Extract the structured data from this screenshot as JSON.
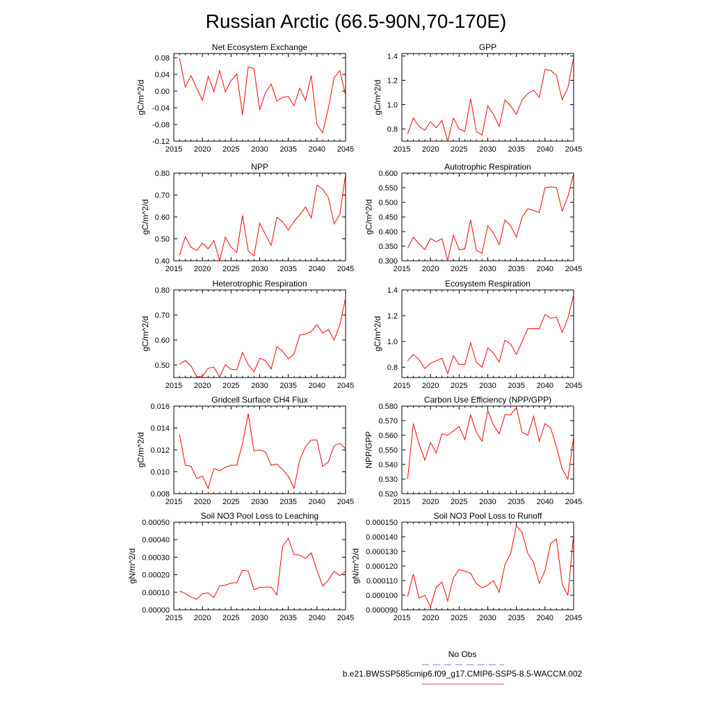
{
  "title": "Russian Arctic (66.5-90N,70-170E)",
  "legend": {
    "entries": [
      {
        "label": "No Obs",
        "color": "#7b7bd6",
        "style": "dashed"
      },
      {
        "label": "b.e21.BWSSP585cmip6.f09_g17.CMIP6-SSP5-8.5-WACCM.002",
        "color": "#e05050",
        "style": "solid"
      }
    ]
  },
  "chart_data": [
    {
      "type": "line",
      "title": "Net Ecosystem Exchange",
      "ylabel": "gC/m^2/d",
      "xlim": [
        2015,
        2045
      ],
      "ylim": [
        -0.12,
        0.09
      ],
      "xticks": [
        2015,
        2020,
        2025,
        2030,
        2035,
        2040,
        2045
      ],
      "xtick_labels": [
        "2015",
        "2020",
        "2025",
        "2030",
        "2035",
        "2040",
        "2045"
      ],
      "yticks": [
        -0.12,
        -0.08,
        -0.04,
        0.0,
        0.04,
        0.08
      ],
      "ytick_labels": [
        "-0.12",
        "-0.08",
        "-0.04",
        "0.00",
        "0.04",
        "0.08"
      ],
      "color": "#ff0000",
      "x": [
        2016,
        2017,
        2018,
        2019,
        2020,
        2021,
        2022,
        2023,
        2024,
        2025,
        2026,
        2027,
        2028,
        2029,
        2030,
        2031,
        2032,
        2033,
        2034,
        2035,
        2036,
        2037,
        2038,
        2039,
        2040,
        2041,
        2042,
        2043,
        2044,
        2045
      ],
      "y": [
        0.079,
        0.01,
        0.037,
        0.007,
        -0.022,
        0.035,
        -0.001,
        0.049,
        -0.002,
        0.025,
        0.041,
        -0.057,
        0.058,
        0.054,
        -0.045,
        -0.004,
        0.017,
        -0.024,
        -0.015,
        -0.013,
        -0.035,
        0.007,
        -0.022,
        0.037,
        -0.08,
        -0.1,
        -0.04,
        0.032,
        0.049,
        -0.01
      ]
    },
    {
      "type": "line",
      "title": "GPP",
      "ylabel": "gC/m^2/d",
      "xlim": [
        2015,
        2045
      ],
      "ylim": [
        0.7,
        1.42
      ],
      "xticks": [
        2015,
        2020,
        2025,
        2030,
        2035,
        2040,
        2045
      ],
      "xtick_labels": [
        "2015",
        "2020",
        "2025",
        "2030",
        "2035",
        "2040",
        "2045"
      ],
      "yticks": [
        0.8,
        1.0,
        1.2,
        1.4
      ],
      "ytick_labels": [
        "0.8",
        "1.0",
        "1.2",
        "1.4"
      ],
      "color": "#ff0000",
      "x": [
        2016,
        2017,
        2018,
        2019,
        2020,
        2021,
        2022,
        2023,
        2024,
        2025,
        2026,
        2027,
        2028,
        2029,
        2030,
        2031,
        2032,
        2033,
        2034,
        2035,
        2036,
        2037,
        2038,
        2039,
        2040,
        2041,
        2042,
        2043,
        2044,
        2045
      ],
      "y": [
        0.76,
        0.89,
        0.82,
        0.79,
        0.86,
        0.81,
        0.87,
        0.7,
        0.89,
        0.8,
        0.78,
        1.05,
        0.78,
        0.75,
        0.99,
        0.92,
        0.82,
        1.04,
        0.99,
        0.92,
        1.04,
        1.09,
        1.12,
        1.06,
        1.29,
        1.28,
        1.24,
        1.04,
        1.14,
        1.39
      ]
    },
    {
      "type": "line",
      "title": "NPP",
      "ylabel": "gC/m^2/d",
      "xlim": [
        2015,
        2045
      ],
      "ylim": [
        0.4,
        0.8
      ],
      "xticks": [
        2015,
        2020,
        2025,
        2030,
        2035,
        2040,
        2045
      ],
      "xtick_labels": [
        "2015",
        "2020",
        "2025",
        "2030",
        "2035",
        "2040",
        "2045"
      ],
      "yticks": [
        0.4,
        0.5,
        0.6,
        0.7,
        0.8
      ],
      "ytick_labels": [
        "0.40",
        "0.50",
        "0.60",
        "0.70",
        "0.80"
      ],
      "color": "#ff0000",
      "x": [
        2016,
        2017,
        2018,
        2019,
        2020,
        2021,
        2022,
        2023,
        2024,
        2025,
        2026,
        2027,
        2028,
        2029,
        2030,
        2031,
        2032,
        2033,
        2034,
        2035,
        2036,
        2037,
        2038,
        2039,
        2040,
        2041,
        2042,
        2043,
        2044,
        2045
      ],
      "y": [
        0.425,
        0.51,
        0.462,
        0.446,
        0.48,
        0.455,
        0.492,
        0.4,
        0.508,
        0.462,
        0.438,
        0.607,
        0.445,
        0.422,
        0.572,
        0.52,
        0.47,
        0.598,
        0.578,
        0.54,
        0.58,
        0.61,
        0.645,
        0.595,
        0.745,
        0.728,
        0.688,
        0.568,
        0.612,
        0.795
      ]
    },
    {
      "type": "line",
      "title": "Autotrophic Respiration",
      "ylabel": "gC/m^2/d",
      "xlim": [
        2015,
        2045
      ],
      "ylim": [
        0.3,
        0.6
      ],
      "xticks": [
        2015,
        2020,
        2025,
        2030,
        2035,
        2040,
        2045
      ],
      "xtick_labels": [
        "2015",
        "2020",
        "2025",
        "2030",
        "2035",
        "2040",
        "2045"
      ],
      "yticks": [
        0.3,
        0.35,
        0.4,
        0.45,
        0.5,
        0.55,
        0.6
      ],
      "ytick_labels": [
        "0.300",
        "0.350",
        "0.400",
        "0.450",
        "0.500",
        "0.550",
        "0.600"
      ],
      "color": "#ff0000",
      "x": [
        2016,
        2017,
        2018,
        2019,
        2020,
        2021,
        2022,
        2023,
        2024,
        2025,
        2026,
        2027,
        2028,
        2029,
        2030,
        2031,
        2032,
        2033,
        2034,
        2035,
        2036,
        2037,
        2038,
        2039,
        2040,
        2041,
        2042,
        2043,
        2044,
        2045
      ],
      "y": [
        0.343,
        0.38,
        0.358,
        0.338,
        0.376,
        0.365,
        0.376,
        0.3,
        0.388,
        0.338,
        0.341,
        0.44,
        0.336,
        0.325,
        0.42,
        0.395,
        0.355,
        0.44,
        0.42,
        0.38,
        0.449,
        0.478,
        0.472,
        0.465,
        0.55,
        0.553,
        0.551,
        0.47,
        0.52,
        0.598
      ]
    },
    {
      "type": "line",
      "title": "Heterotrophic Respiration",
      "ylabel": "gC/m^2/d",
      "xlim": [
        2015,
        2045
      ],
      "ylim": [
        0.45,
        0.8
      ],
      "xticks": [
        2015,
        2020,
        2025,
        2030,
        2035,
        2040,
        2045
      ],
      "xtick_labels": [
        "2015",
        "2020",
        "2025",
        "2030",
        "2035",
        "2040",
        "2045"
      ],
      "yticks": [
        0.5,
        0.6,
        0.7,
        0.8
      ],
      "ytick_labels": [
        "0.50",
        "0.60",
        "0.70",
        "0.80"
      ],
      "color": "#ff0000",
      "x": [
        2016,
        2017,
        2018,
        2019,
        2020,
        2021,
        2022,
        2023,
        2024,
        2025,
        2026,
        2027,
        2028,
        2029,
        2030,
        2031,
        2032,
        2033,
        2034,
        2035,
        2036,
        2037,
        2038,
        2039,
        2040,
        2041,
        2042,
        2043,
        2044,
        2045
      ],
      "y": [
        0.503,
        0.518,
        0.497,
        0.453,
        0.455,
        0.487,
        0.492,
        0.452,
        0.502,
        0.483,
        0.481,
        0.55,
        0.502,
        0.473,
        0.527,
        0.518,
        0.484,
        0.573,
        0.556,
        0.524,
        0.545,
        0.62,
        0.624,
        0.633,
        0.662,
        0.628,
        0.642,
        0.6,
        0.66,
        0.768
      ]
    },
    {
      "type": "line",
      "title": "Ecosystem Respiration",
      "ylabel": "gC/m^2/d",
      "xlim": [
        2015,
        2045
      ],
      "ylim": [
        0.72,
        1.4
      ],
      "xticks": [
        2015,
        2020,
        2025,
        2030,
        2035,
        2040,
        2045
      ],
      "xtick_labels": [
        "2015",
        "2020",
        "2025",
        "2030",
        "2035",
        "2040",
        "2045"
      ],
      "yticks": [
        0.8,
        1.0,
        1.2,
        1.4
      ],
      "ytick_labels": [
        "0.8",
        "1.0",
        "1.2",
        "1.4"
      ],
      "color": "#ff0000",
      "x": [
        2016,
        2017,
        2018,
        2019,
        2020,
        2021,
        2022,
        2023,
        2024,
        2025,
        2026,
        2027,
        2028,
        2029,
        2030,
        2031,
        2032,
        2033,
        2034,
        2035,
        2036,
        2037,
        2038,
        2039,
        2040,
        2041,
        2042,
        2043,
        2044,
        2045
      ],
      "y": [
        0.85,
        0.9,
        0.86,
        0.79,
        0.83,
        0.85,
        0.87,
        0.75,
        0.89,
        0.82,
        0.82,
        0.99,
        0.84,
        0.8,
        0.95,
        0.91,
        0.84,
        1.01,
        0.98,
        0.9,
        1.0,
        1.1,
        1.1,
        1.1,
        1.21,
        1.18,
        1.19,
        1.07,
        1.18,
        1.36
      ]
    },
    {
      "type": "line",
      "title": "Gridcell Surface CH4 Flux",
      "ylabel": "gC/m^2/d",
      "xlim": [
        2015,
        2045
      ],
      "ylim": [
        0.008,
        0.016
      ],
      "xticks": [
        2015,
        2020,
        2025,
        2030,
        2035,
        2040,
        2045
      ],
      "xtick_labels": [
        "2015",
        "2020",
        "2025",
        "2030",
        "2035",
        "2040",
        "2045"
      ],
      "yticks": [
        0.008,
        0.01,
        0.012,
        0.014,
        0.016
      ],
      "ytick_labels": [
        "0.008",
        "0.010",
        "0.012",
        "0.014",
        "0.016"
      ],
      "color": "#ff0000",
      "x": [
        2016,
        2017,
        2018,
        2019,
        2020,
        2021,
        2022,
        2023,
        2024,
        2025,
        2026,
        2027,
        2028,
        2029,
        2030,
        2031,
        2032,
        2033,
        2034,
        2035,
        2036,
        2037,
        2038,
        2039,
        2040,
        2041,
        2042,
        2043,
        2044,
        2045
      ],
      "y": [
        0.0134,
        0.0106,
        0.0105,
        0.0094,
        0.0096,
        0.0085,
        0.0103,
        0.0101,
        0.0104,
        0.0106,
        0.0106,
        0.0126,
        0.0153,
        0.0119,
        0.012,
        0.0118,
        0.0106,
        0.0107,
        0.0102,
        0.0096,
        0.0085,
        0.0111,
        0.0123,
        0.0129,
        0.0129,
        0.0105,
        0.0109,
        0.0124,
        0.0126,
        0.0121
      ]
    },
    {
      "type": "line",
      "title": "Carbon Use Efficiency (NPP/GPP)",
      "ylabel": "NPP/GPP",
      "xlim": [
        2015,
        2045
      ],
      "ylim": [
        0.52,
        0.58
      ],
      "xticks": [
        2015,
        2020,
        2025,
        2030,
        2035,
        2040,
        2045
      ],
      "xtick_labels": [
        "2015",
        "2020",
        "2025",
        "2030",
        "2035",
        "2040",
        "2045"
      ],
      "yticks": [
        0.52,
        0.53,
        0.54,
        0.55,
        0.56,
        0.57,
        0.58
      ],
      "ytick_labels": [
        "0.520",
        "0.530",
        "0.540",
        "0.550",
        "0.560",
        "0.570",
        "0.580"
      ],
      "color": "#ff0000",
      "x": [
        2016,
        2017,
        2018,
        2019,
        2020,
        2021,
        2022,
        2023,
        2024,
        2025,
        2026,
        2027,
        2028,
        2029,
        2030,
        2031,
        2032,
        2033,
        2034,
        2035,
        2036,
        2037,
        2038,
        2039,
        2040,
        2041,
        2042,
        2043,
        2044,
        2045
      ],
      "y": [
        0.53,
        0.568,
        0.554,
        0.543,
        0.555,
        0.548,
        0.561,
        0.56,
        0.563,
        0.566,
        0.557,
        0.574,
        0.562,
        0.556,
        0.577,
        0.567,
        0.561,
        0.574,
        0.574,
        0.579,
        0.562,
        0.56,
        0.573,
        0.556,
        0.568,
        0.565,
        0.552,
        0.537,
        0.53,
        0.559
      ]
    },
    {
      "type": "line",
      "title": "Soil NO3 Pool Loss to Leaching",
      "ylabel": "gN/m^2/d",
      "xlim": [
        2015,
        2045
      ],
      "ylim": [
        0.0,
        0.0005
      ],
      "xticks": [
        2015,
        2020,
        2025,
        2030,
        2035,
        2040,
        2045
      ],
      "xtick_labels": [
        "2015",
        "2020",
        "2025",
        "2030",
        "2035",
        "2040",
        "2045"
      ],
      "yticks": [
        0.0,
        0.0001,
        0.0002,
        0.0003,
        0.0004,
        0.0005
      ],
      "ytick_labels": [
        "0.00000",
        "0.00010",
        "0.00020",
        "0.00030",
        "0.00040",
        "0.00050"
      ],
      "color": "#ff0000",
      "x": [
        2016,
        2017,
        2018,
        2019,
        2020,
        2021,
        2022,
        2023,
        2024,
        2025,
        2026,
        2027,
        2028,
        2029,
        2030,
        2031,
        2032,
        2033,
        2034,
        2035,
        2036,
        2037,
        2038,
        2039,
        2040,
        2041,
        2042,
        2043,
        2044,
        2045
      ],
      "y": [
        0.000108,
        9.3e-05,
        7.3e-05,
        6e-05,
        9.2e-05,
        9.7e-05,
        7e-05,
        0.000136,
        0.00014,
        0.000153,
        0.000155,
        0.000225,
        0.000221,
        0.000114,
        0.000128,
        0.00013,
        0.00013,
        8.5e-05,
        0.00036,
        0.000408,
        0.000315,
        0.000312,
        0.000292,
        0.000325,
        0.000225,
        0.000136,
        0.00017,
        0.00022,
        0.000195,
        0.00022
      ]
    },
    {
      "type": "line",
      "title": "Soil NO3 Pool Loss to Runoff",
      "ylabel": "gN/m^2/d",
      "xlim": [
        2015,
        2045
      ],
      "ylim": [
        9e-05,
        0.00015
      ],
      "xticks": [
        2015,
        2020,
        2025,
        2030,
        2035,
        2040,
        2045
      ],
      "xtick_labels": [
        "2015",
        "2020",
        "2025",
        "2030",
        "2035",
        "2040",
        "2045"
      ],
      "yticks": [
        9e-05,
        0.0001,
        0.00011,
        0.00012,
        0.00013,
        0.00014,
        0.00015
      ],
      "ytick_labels": [
        "0.000090",
        "0.000100",
        "0.000110",
        "0.000120",
        "0.000130",
        "0.000140",
        "0.000150"
      ],
      "color": "#ff0000",
      "x": [
        2016,
        2017,
        2018,
        2019,
        2020,
        2021,
        2022,
        2023,
        2024,
        2025,
        2026,
        2027,
        2028,
        2029,
        2030,
        2031,
        2032,
        2033,
        2034,
        2035,
        2036,
        2037,
        2038,
        2039,
        2040,
        2041,
        2042,
        2043,
        2044,
        2045
      ],
      "y": [
        9.9e-05,
        0.0001145,
        9.8e-05,
        0.0001,
        9.2e-05,
        0.0001055,
        0.000109,
        9.6e-05,
        0.000112,
        0.0001175,
        0.0001165,
        0.000115,
        0.000108,
        0.000105,
        0.000107,
        0.00011,
        0.000102,
        0.000121,
        0.0001285,
        0.0001475,
        0.000143,
        0.0001285,
        0.0001225,
        0.000108,
        0.000117,
        0.0001355,
        0.0001385,
        0.0001075,
        0.0001,
        0.000142
      ]
    }
  ]
}
